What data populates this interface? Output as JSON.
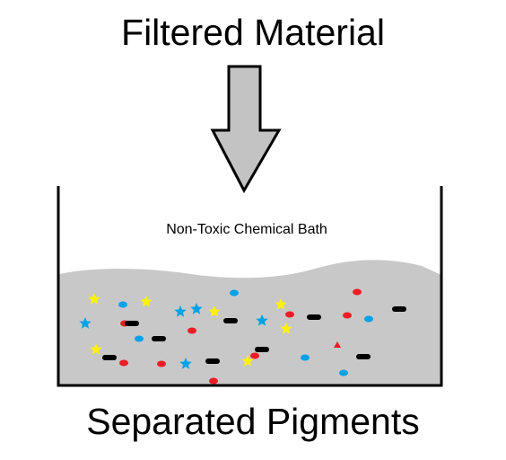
{
  "labels": {
    "input": "Filtered Material",
    "bath": "Non-Toxic Chemical Bath",
    "output": "Separated Pigments"
  },
  "colors": {
    "arrow_fill": "#c3c3c3",
    "liquid": "#c8c8c8",
    "outline": "#000000",
    "pigment_red": "#ed1c24",
    "pigment_blue": "#00a2e8",
    "pigment_yellow": "#fff200",
    "pigment_black": "#000000"
  }
}
